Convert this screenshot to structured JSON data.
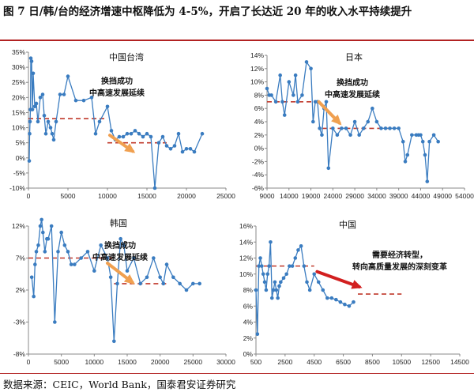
{
  "figure": {
    "title": "图 7  日/韩/台的经济增速中枢降低为 4-5%，开启了长达近 20 年的收入水平持续提升",
    "source": "数据来源：CEIC，World Bank，国泰君安证券研究"
  },
  "colors": {
    "series": "#3a7cc0",
    "trend": "#c0392b",
    "arrow_orange": "#f0a050",
    "arrow_red": "#d21f1f"
  },
  "chart_data": [
    {
      "id": "taiwan",
      "type": "line",
      "title": "中国台湾",
      "xlim": [
        0,
        25000
      ],
      "ylim": [
        -10,
        35
      ],
      "xticks": [
        0,
        5000,
        10000,
        15000,
        20000,
        25000
      ],
      "yticks": [
        -10,
        -5,
        0,
        5,
        10,
        15,
        20,
        25,
        30,
        35
      ],
      "ytick_labels": [
        "-10%",
        "-5%",
        "0%",
        "5%",
        "10%",
        "15%",
        "20%",
        "25%",
        "30%",
        "35%"
      ],
      "x": [
        100,
        150,
        200,
        250,
        300,
        400,
        500,
        600,
        800,
        1000,
        1200,
        1500,
        1800,
        2000,
        2200,
        2500,
        2800,
        3000,
        3200,
        3500,
        4000,
        4500,
        5000,
        6000,
        7000,
        8000,
        8500,
        9000,
        10000,
        10500,
        11000,
        11500,
        12000,
        12500,
        13000,
        13500,
        14000,
        14500,
        15000,
        15500,
        16000,
        16500,
        17000,
        17500,
        18000,
        18500,
        19000,
        19500,
        20000,
        20500,
        21000,
        22000
      ],
      "y": [
        -1,
        8,
        12,
        16,
        33,
        32,
        16,
        28,
        17,
        18,
        12,
        20,
        21,
        14,
        8,
        12,
        10,
        8,
        6,
        12,
        21,
        21,
        27,
        19,
        19,
        20,
        8,
        12,
        17,
        9,
        6,
        7,
        7,
        8,
        8,
        9,
        8,
        7,
        8,
        7,
        -10,
        5,
        7,
        4,
        3,
        4,
        8,
        2,
        3,
        3,
        2,
        8
      ],
      "trend_line": {
        "y": 13,
        "x_from": 0,
        "x_to": 10000,
        "y2": 5,
        "x2_from": 10000,
        "x2_to": 17500
      },
      "annotations": [
        "换挡成功",
        "中高速发展延续"
      ]
    },
    {
      "id": "japan",
      "type": "line",
      "title": "日本",
      "xlim": [
        9000,
        54000
      ],
      "ylim": [
        -6,
        14
      ],
      "xticks": [
        9000,
        14000,
        19000,
        24000,
        29000,
        34000,
        39000,
        44000,
        49000,
        54000
      ],
      "yticks": [
        -6,
        -4,
        -2,
        0,
        2,
        4,
        6,
        8,
        10,
        12,
        14
      ],
      "ytick_labels": [
        "-6%",
        "-4%",
        "-2%",
        "0%",
        "2%",
        "4%",
        "6%",
        "8%",
        "10%",
        "12%",
        "14%"
      ],
      "x": [
        9000,
        9500,
        10000,
        11000,
        12000,
        12500,
        13000,
        14000,
        15000,
        15500,
        16000,
        17000,
        18000,
        19000,
        19500,
        20000,
        20500,
        21000,
        21500,
        22000,
        22500,
        23000,
        24000,
        25000,
        26000,
        27000,
        28000,
        29000,
        30000,
        31000,
        32000,
        33000,
        34000,
        35000,
        36000,
        37000,
        38000,
        39000,
        40000,
        40500,
        41000,
        42000,
        43000,
        43500,
        44000,
        44500,
        45000,
        45500,
        46000,
        47000,
        48000
      ],
      "y": [
        9,
        8,
        8,
        7,
        11,
        7,
        5,
        10,
        8,
        11,
        7,
        8,
        13,
        12,
        4,
        7,
        7,
        3,
        2,
        6,
        7,
        -3,
        3,
        2,
        3,
        3,
        2,
        4,
        2,
        3,
        4,
        6,
        4,
        3,
        3,
        3,
        3,
        3,
        1,
        -2,
        -1,
        2,
        2,
        2,
        2,
        1,
        -1,
        -5,
        1,
        2,
        1
      ],
      "trend_line": {
        "y": 7,
        "x_from": 9000,
        "x_to": 21500,
        "y2": 3,
        "x2_from": 21500,
        "x2_to": 38000
      },
      "annotations": [
        "换挡成功",
        "中高速发展延续"
      ]
    },
    {
      "id": "korea",
      "type": "line",
      "title": "韩国",
      "xlim": [
        0,
        30000
      ],
      "ylim": [
        -8,
        12
      ],
      "xticks": [
        0,
        5000,
        10000,
        15000,
        20000,
        25000,
        30000
      ],
      "yticks": [
        -8,
        -3,
        2,
        7,
        12
      ],
      "ytick_labels": [
        "-8%",
        "-3%",
        "2%",
        "7%",
        "12%"
      ],
      "x": [
        500,
        800,
        1000,
        1200,
        1500,
        1800,
        2000,
        2200,
        2500,
        2800,
        3000,
        3500,
        4000,
        4500,
        5000,
        5500,
        6000,
        6500,
        7000,
        8000,
        9000,
        10000,
        11000,
        12000,
        12500,
        13000,
        13500,
        14000,
        14500,
        15000,
        16000,
        17000,
        18000,
        19000,
        20000,
        20500,
        21000,
        22000,
        23000,
        24000,
        25000,
        26000
      ],
      "y": [
        4,
        1,
        6,
        8,
        9,
        12,
        13,
        11,
        8,
        10,
        10,
        12,
        -3,
        8,
        11,
        9,
        8,
        6,
        6,
        7,
        8,
        5,
        9,
        7,
        4,
        -6,
        3,
        10,
        9,
        5,
        7,
        3,
        4,
        7,
        4,
        3,
        6,
        4,
        3,
        2,
        3,
        3
      ],
      "trend_line": {
        "y": 7,
        "x_from": 0,
        "x_to": 13000,
        "y2": 3,
        "x2_from": 13000,
        "x2_to": 21000
      },
      "annotations": [
        "换挡成功",
        "中高速发展延续"
      ]
    },
    {
      "id": "china",
      "type": "line",
      "title": "中国",
      "xlim": [
        500,
        14500
      ],
      "ylim": [
        0,
        16
      ],
      "xticks": [
        500,
        2500,
        4500,
        6500,
        8500,
        10500,
        12500,
        14500
      ],
      "yticks": [
        0,
        2,
        4,
        6,
        8,
        10,
        12,
        14,
        16
      ],
      "ytick_labels": [
        "0%",
        "2%",
        "4%",
        "6%",
        "8%",
        "10%",
        "12%",
        "14%",
        "16%"
      ],
      "x": [
        500,
        600,
        700,
        800,
        900,
        1000,
        1100,
        1200,
        1300,
        1400,
        1500,
        1600,
        1700,
        1800,
        1900,
        2000,
        2100,
        2200,
        2400,
        2600,
        2800,
        3000,
        3200,
        3400,
        3600,
        3800,
        4000,
        4200,
        4500,
        4800,
        5100,
        5400,
        5700,
        6000,
        6300,
        6600,
        6900,
        7200
      ],
      "y": [
        8,
        2.5,
        11,
        12,
        11,
        10,
        9,
        8,
        10,
        11,
        14,
        7,
        8,
        9,
        8,
        7,
        8.5,
        9,
        9.5,
        10,
        11,
        11,
        12,
        13,
        13.5,
        11,
        9,
        8,
        10,
        9,
        8,
        7,
        7,
        6.8,
        6.5,
        6.2,
        6,
        6.5
      ],
      "trend_line": {
        "y": 11,
        "x_from": 500,
        "x_to": 4500,
        "y2": 7.5,
        "x2_from": 7500,
        "x2_to": 10500
      },
      "annotations": [
        "需要经济转型，",
        "转向高质量发展的深刻变革"
      ]
    }
  ]
}
